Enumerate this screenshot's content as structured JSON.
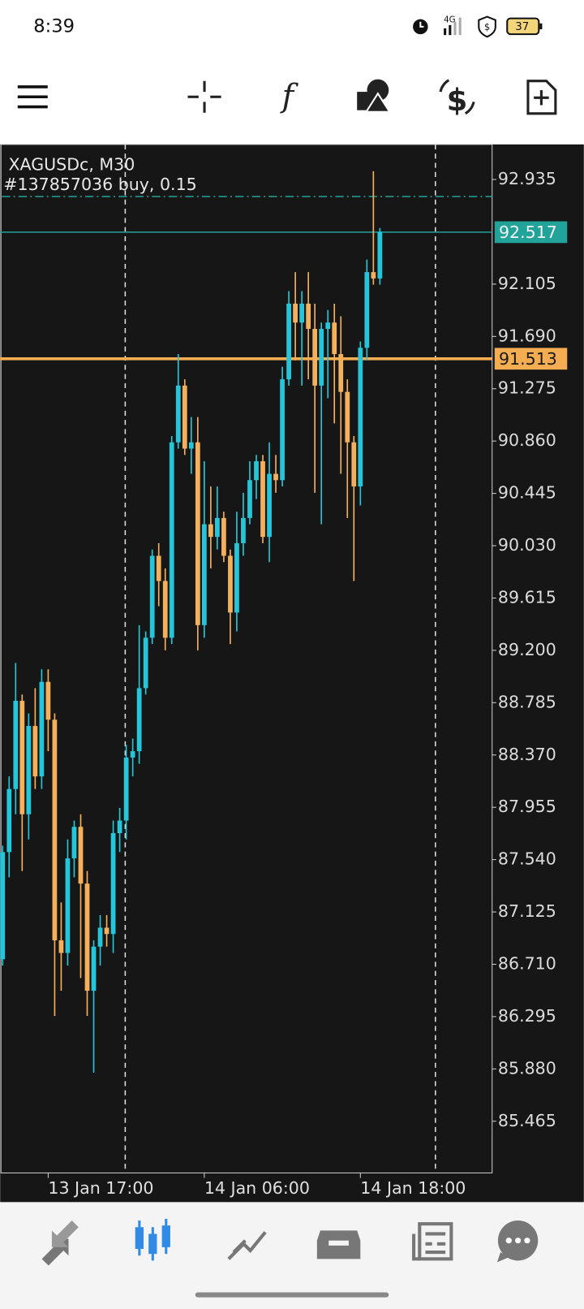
{
  "status_bar": {
    "time": "8:39",
    "network": "4G",
    "battery": "37"
  },
  "chart_data": {
    "type": "candlestick",
    "title": "XAGUSDc, M30",
    "subtitle": "#137857036 buy, 0.15",
    "categories": [
      null,
      null,
      null,
      null,
      null,
      null,
      null,
      "13 Jan 17:00",
      null,
      null,
      null,
      null,
      null,
      null,
      null,
      null,
      null,
      null,
      null,
      null,
      null,
      null,
      null,
      null,
      null,
      null,
      null,
      null,
      null,
      null,
      null,
      "14 Jan 06:00",
      null,
      null,
      null,
      null,
      null,
      null,
      null,
      null,
      null,
      null,
      null,
      null,
      null,
      null,
      null,
      null,
      null,
      null,
      null,
      null,
      null,
      null,
      null,
      "14 Jan 18:00",
      null,
      null,
      null
    ],
    "open": [
      86.75,
      87.6,
      88.1,
      88.8,
      87.9,
      88.6,
      88.2,
      88.95,
      88.65,
      86.9,
      86.8,
      87.55,
      87.8,
      87.35,
      86.5,
      86.85,
      87.0,
      86.95,
      87.75,
      87.85,
      88.35,
      88.4,
      88.9,
      89.3,
      89.95,
      89.75,
      89.3,
      90.85,
      91.3,
      90.8,
      90.85,
      89.4,
      90.2,
      90.1,
      90.25,
      89.95,
      89.5,
      90.05,
      90.25,
      90.55,
      90.7,
      90.1,
      90.6,
      90.55,
      91.35,
      91.95,
      91.8,
      91.95,
      91.75,
      91.3,
      91.75,
      91.8,
      91.55,
      91.25,
      90.85,
      90.5,
      91.6,
      92.2,
      92.15
    ],
    "high": [
      87.65,
      88.2,
      89.1,
      88.85,
      88.7,
      88.9,
      89.05,
      89.05,
      88.7,
      87.2,
      87.7,
      87.85,
      87.9,
      87.45,
      86.9,
      87.1,
      87.1,
      87.85,
      87.95,
      88.45,
      88.5,
      89.4,
      89.35,
      90.0,
      90.05,
      89.85,
      90.9,
      91.55,
      91.35,
      91.05,
      91.05,
      90.7,
      90.5,
      90.5,
      90.3,
      90.0,
      90.3,
      90.45,
      90.7,
      90.75,
      90.75,
      90.85,
      90.75,
      91.45,
      92.05,
      92.2,
      92.05,
      92.2,
      91.95,
      91.8,
      91.9,
      91.95,
      91.85,
      91.35,
      90.9,
      91.65,
      92.3,
      93.0,
      92.55
    ],
    "low": [
      86.7,
      87.4,
      87.9,
      87.45,
      87.7,
      88.1,
      88.1,
      88.4,
      86.3,
      86.5,
      86.7,
      87.4,
      86.6,
      86.3,
      85.85,
      86.7,
      86.85,
      86.8,
      87.6,
      87.7,
      88.2,
      88.3,
      88.85,
      89.25,
      89.55,
      89.2,
      89.25,
      90.8,
      90.75,
      90.6,
      89.2,
      89.3,
      89.85,
      90.0,
      89.9,
      89.25,
      89.35,
      89.95,
      90.2,
      90.4,
      90.05,
      89.9,
      90.45,
      90.5,
      91.3,
      91.5,
      91.3,
      91.35,
      90.45,
      90.2,
      91.2,
      91.0,
      90.6,
      90.25,
      89.75,
      90.35,
      91.5,
      92.1,
      92.1
    ],
    "close": [
      87.6,
      88.1,
      88.8,
      87.9,
      88.6,
      88.2,
      88.95,
      88.65,
      86.9,
      86.8,
      87.55,
      87.8,
      87.35,
      86.5,
      86.85,
      87.0,
      86.95,
      87.75,
      87.85,
      88.35,
      88.4,
      88.9,
      89.3,
      89.95,
      89.75,
      89.3,
      90.85,
      91.3,
      90.8,
      90.85,
      89.4,
      90.2,
      90.1,
      90.25,
      89.95,
      89.5,
      90.05,
      90.25,
      90.55,
      90.7,
      90.1,
      90.6,
      90.55,
      91.35,
      91.95,
      91.8,
      91.95,
      91.75,
      91.3,
      91.75,
      91.8,
      91.55,
      91.25,
      90.85,
      90.5,
      91.6,
      92.2,
      92.15,
      92.517
    ],
    "up_color": "#26c6da",
    "down_color": "#f5b05c",
    "ylim": [
      85.055,
      93.213
    ],
    "yticks": [
      92.935,
      92.105,
      {
        "value": 91.69,
        "label": "91.690"
      },
      91.275,
      {
        "value": 90.86,
        "label": "90.860"
      },
      90.445,
      {
        "value": 90.03,
        "label": "90.030"
      },
      89.615,
      {
        "value": 89.2,
        "label": "89.200"
      },
      88.785,
      {
        "value": 88.37,
        "label": "88.370"
      },
      87.955,
      {
        "value": 87.54,
        "label": "87.540"
      },
      87.125,
      {
        "value": 86.71,
        "label": "86.710"
      },
      86.295,
      {
        "value": 85.88,
        "label": "85.880"
      },
      85.465
    ],
    "current_price": 92.517,
    "current_price_color": "#22a39a",
    "alert_price": 91.513,
    "alert_color": "#f5ad52",
    "order_price": 92.8,
    "grid": false
  }
}
